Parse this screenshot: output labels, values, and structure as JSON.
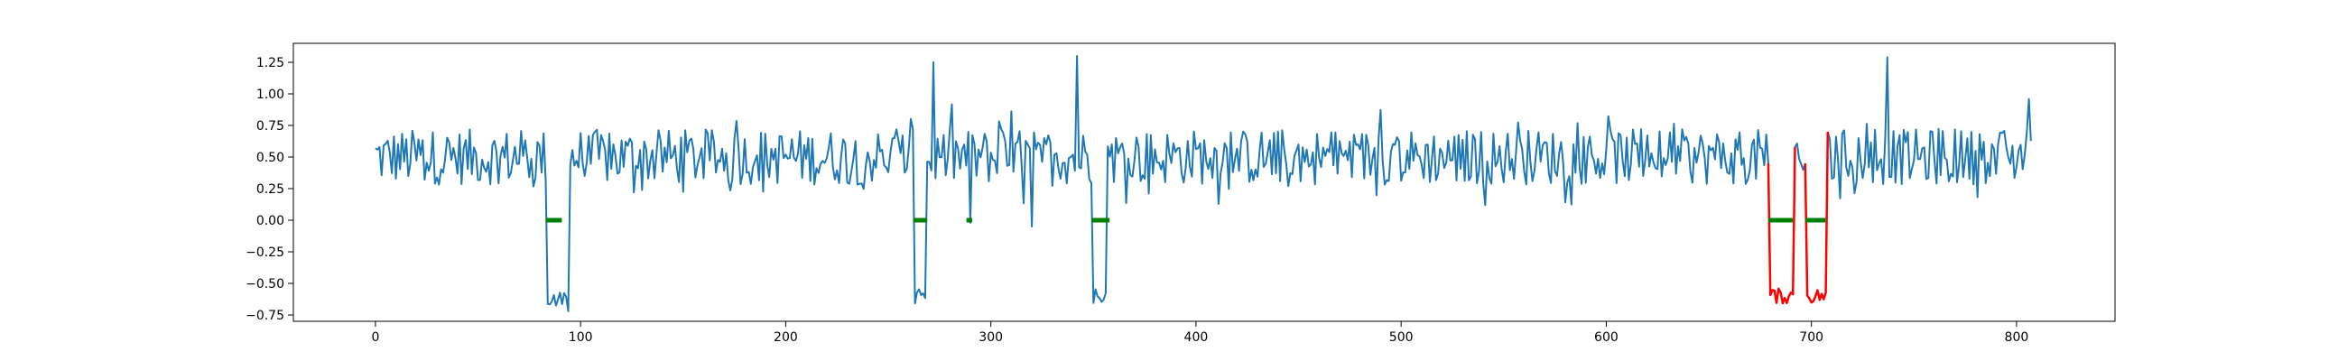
{
  "chart_data": {
    "type": "line",
    "title": "",
    "xlabel": "",
    "ylabel": "",
    "xlim": [
      -40,
      848
    ],
    "ylim": [
      -0.8,
      1.4
    ],
    "xticks": [
      0,
      100,
      200,
      300,
      400,
      500,
      600,
      700,
      800
    ],
    "yticks": [
      -0.75,
      -0.5,
      -0.25,
      0.0,
      0.25,
      0.5,
      0.75,
      1.0,
      1.25
    ],
    "xtick_labels": [
      "0",
      "100",
      "200",
      "300",
      "400",
      "500",
      "600",
      "700",
      "800"
    ],
    "ytick_labels": [
      "−0.75",
      "−0.50",
      "−0.25",
      "0.00",
      "0.25",
      "0.50",
      "0.75",
      "1.00",
      "1.25"
    ],
    "grid": false,
    "legend": "none",
    "n_points": 808,
    "series": [
      {
        "role": "signal",
        "color": "#1f77b4",
        "baseline_mean": 0.5,
        "baseline_amplitude": 0.22,
        "segments_low": [
          {
            "start": 84,
            "end": 93,
            "level": -0.62
          },
          {
            "start": 263,
            "end": 268,
            "level": -0.6
          },
          {
            "start": 350,
            "end": 356,
            "level": -0.6
          }
        ],
        "spikes": [
          {
            "x": 94,
            "y": -0.72
          },
          {
            "x": 272,
            "y": 1.25
          },
          {
            "x": 290,
            "y": -0.02
          },
          {
            "x": 320,
            "y": -0.05
          },
          {
            "x": 342,
            "y": 1.3
          },
          {
            "x": 737,
            "y": 1.29
          },
          {
            "x": 806,
            "y": 0.96
          }
        ]
      },
      {
        "role": "anomaly",
        "color": "#ff0000",
        "segments": [
          {
            "start": 679,
            "end": 691,
            "level": -0.6,
            "peak_y": 0.58
          },
          {
            "start": 697,
            "end": 707,
            "level": -0.6,
            "peak_y": 0.7
          }
        ]
      },
      {
        "role": "zero-marker",
        "color": "#008000",
        "y": 0,
        "ranges": [
          [
            84,
            90
          ],
          [
            263,
            268
          ],
          [
            289,
            290
          ],
          [
            350,
            357
          ],
          [
            680,
            690
          ],
          [
            698,
            706
          ]
        ]
      }
    ]
  }
}
